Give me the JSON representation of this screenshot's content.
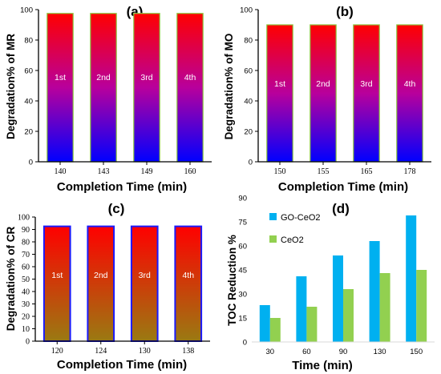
{
  "colors": {
    "gradient_ab_top": "#ff0000",
    "gradient_ab_mid": "#b8009c",
    "gradient_ab_bottom": "#0000ff",
    "border_ab": "#8cc63f",
    "gradient_c_top": "#ff0000",
    "gradient_c_bottom": "#9a7a12",
    "border_c": "#1a1aff",
    "go_ceo2": "#00b0f0",
    "ceo2": "#92d050",
    "axis": "#000000"
  },
  "chart_data": [
    {
      "panel": "(a)",
      "type": "bar",
      "title": "(a)",
      "xlabel": "Completion Time (min)",
      "ylabel": "Degradation% of MR",
      "categories": [
        "140",
        "143",
        "149",
        "160"
      ],
      "bar_labels": [
        "1st",
        "2nd",
        "3rd",
        "4th"
      ],
      "values": [
        97.5,
        97.5,
        97.5,
        97.5
      ],
      "ylim": [
        0,
        100
      ],
      "yticks": [
        "0",
        "20",
        "40",
        "60",
        "80",
        "100"
      ],
      "fill": "vertical gradient red-magenta-blue",
      "legend": false,
      "grid": false
    },
    {
      "panel": "(b)",
      "type": "bar",
      "title": "(b)",
      "xlabel": "Completion Time (min)",
      "ylabel": "Degradation% of MO",
      "categories": [
        "150",
        "155",
        "165",
        "178"
      ],
      "bar_labels": [
        "1st",
        "2nd",
        "3rd",
        "4th"
      ],
      "values": [
        90,
        90,
        90,
        90
      ],
      "ylim": [
        0,
        100
      ],
      "yticks": [
        "0",
        "20",
        "40",
        "60",
        "80",
        "100"
      ],
      "fill": "vertical gradient red-magenta-blue",
      "legend": false,
      "grid": false
    },
    {
      "panel": "(c)",
      "type": "bar",
      "title": "(c)",
      "xlabel": "Completion Time (min)",
      "ylabel": "Degradation% of CR",
      "categories": [
        "120",
        "124",
        "130",
        "138"
      ],
      "bar_labels": [
        "1st",
        "2nd",
        "3rd",
        "4th"
      ],
      "values": [
        92.5,
        92.5,
        92.5,
        92.5
      ],
      "ylim": [
        0,
        100
      ],
      "yticks": [
        "0",
        "10",
        "20",
        "30",
        "40",
        "50",
        "60",
        "70",
        "80",
        "90",
        "100"
      ],
      "fill": "vertical gradient red-olive",
      "legend": false,
      "grid": false
    },
    {
      "panel": "(d)",
      "type": "bar",
      "title": "(d)",
      "xlabel": "Time (min)",
      "ylabel": "TOC Reduction %",
      "categories": [
        "30",
        "60",
        "90",
        "130",
        "150"
      ],
      "series": [
        {
          "name": "GO-CeO2",
          "values": [
            23,
            41,
            54,
            63,
            79
          ]
        },
        {
          "name": "CeO2",
          "values": [
            15,
            22,
            33,
            43,
            45
          ]
        }
      ],
      "ylim": [
        0,
        90
      ],
      "yticks": [
        "0",
        "15",
        "30",
        "45",
        "60",
        "75",
        "90"
      ],
      "legend": "top-left",
      "grid": false
    }
  ]
}
